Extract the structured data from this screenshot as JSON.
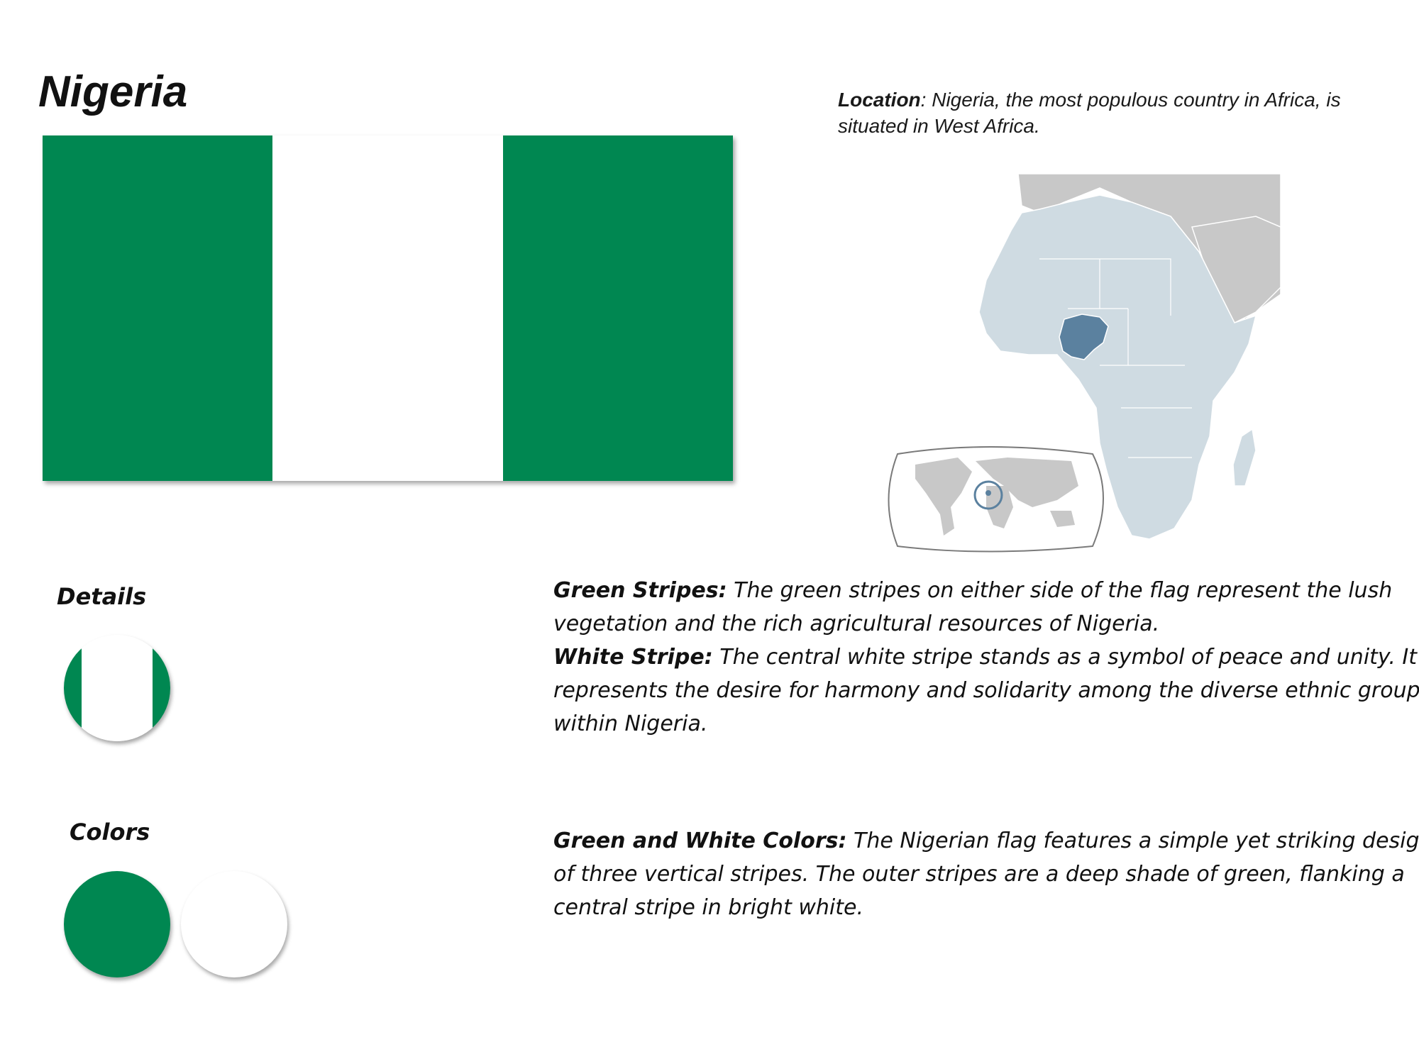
{
  "title": "Nigeria",
  "flag": {
    "stripes": [
      "green",
      "white",
      "green"
    ],
    "colors": {
      "green": "#008751",
      "white": "#ffffff"
    }
  },
  "location": {
    "label": "Location",
    "text": ": Nigeria, the most populous country in Africa, is situated in West Africa."
  },
  "map": {
    "description_icon": "africa-locator-map",
    "colors": {
      "africa": "#cfdbe2",
      "other_land": "#c8c8c8",
      "highlight": "#5b819f",
      "border": "#ffffff"
    }
  },
  "details": {
    "heading": "Details",
    "green_stripes_label": "Green Stripes:",
    "green_stripes_text": " The green stripes on either side of the flag represent the lush vegetation and the rich agricultural resources of Nigeria.",
    "white_stripe_label": "White Stripe:",
    "white_stripe_text": " The central white stripe stands as a symbol of peace and unity. It represents the desire for harmony and solidarity among the diverse ethnic groups within Nigeria."
  },
  "colors": {
    "heading": "Colors",
    "swatches": [
      "#008751",
      "#ffffff"
    ],
    "label": "Green and White Colors:",
    "text": "  The Nigerian flag features a simple yet striking design of three vertical stripes. The outer stripes are a deep shade of green, flanking a central stripe in bright white."
  }
}
